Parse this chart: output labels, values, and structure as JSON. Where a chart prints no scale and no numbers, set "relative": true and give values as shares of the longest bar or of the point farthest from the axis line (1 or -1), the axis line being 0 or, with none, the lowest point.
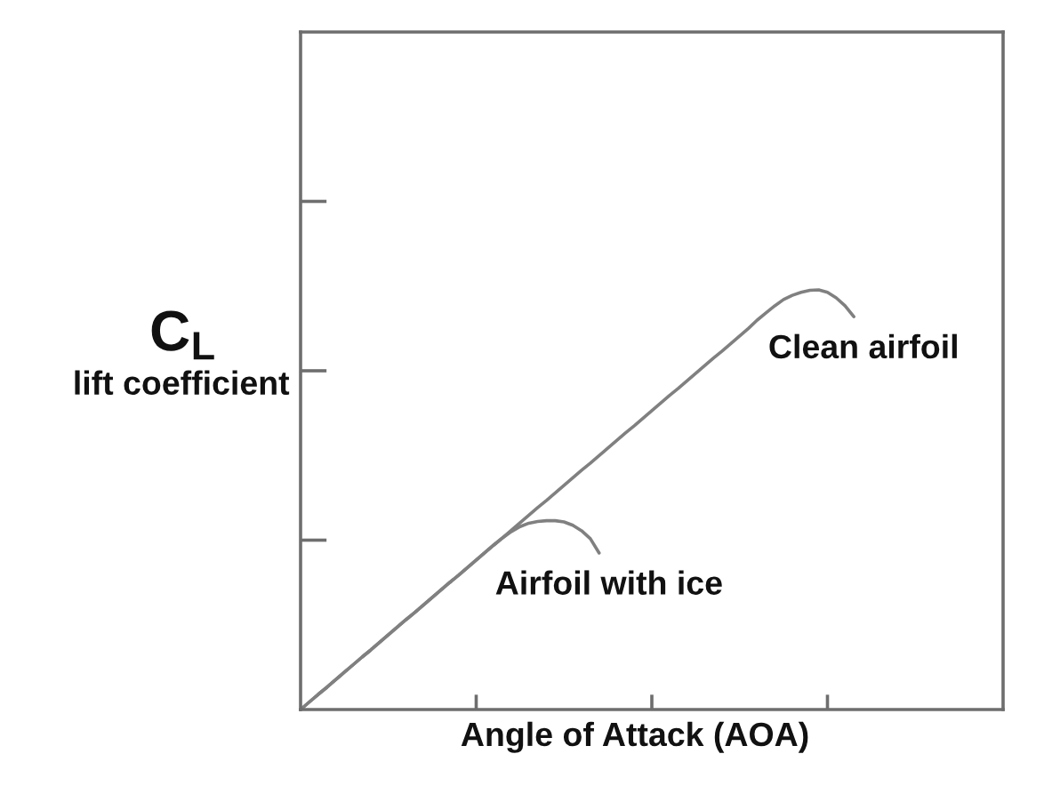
{
  "chart_data": {
    "type": "line",
    "relative": true,
    "xlabel": "Angle of Attack (AOA)",
    "ylabel": "C$_{L}$\nlift coefficient",
    "categories": [
      null,
      null,
      null,
      null,
      null,
      null,
      null,
      null,
      null,
      null,
      null,
      null,
      null,
      null,
      null,
      null,
      null,
      null,
      null,
      null,
      null,
      null,
      null,
      null,
      null,
      null,
      null,
      null,
      null,
      null,
      null,
      null,
      null,
      null,
      null,
      null,
      null,
      null,
      null,
      null,
      null,
      null,
      null,
      null,
      null,
      null,
      null,
      null,
      null,
      null,
      null,
      null,
      null,
      null,
      null,
      null,
      null,
      null,
      null,
      null,
      null,
      null,
      null,
      null,
      null,
      null,
      null,
      null,
      null,
      null,
      null,
      null,
      null,
      null,
      null,
      null,
      null,
      null,
      null,
      null,
      null
    ],
    "series": [
      {
        "name": "Clean airfoil",
        "color": "#808080",
        "values": [
          0,
          0.018,
          0.036,
          0.053,
          0.071,
          0.089,
          0.107,
          0.125,
          0.142,
          0.16,
          0.178,
          0.196,
          0.214,
          0.231,
          0.249,
          0.267,
          0.285,
          0.303,
          0.32,
          0.338,
          0.356,
          0.374,
          0.392,
          0.409,
          0.427,
          0.445,
          0.463,
          0.481,
          0.498,
          0.516,
          0.534,
          0.552,
          0.57,
          0.587,
          0.605,
          0.623,
          0.641,
          0.659,
          0.676,
          0.694,
          0.712,
          0.73,
          0.748,
          0.765,
          0.783,
          0.801,
          0.819,
          0.837,
          0.854,
          0.872,
          0.89,
          0.908,
          0.928,
          0.945,
          0.962,
          0.977,
          0.987,
          0.994,
          0.999,
          1.0,
          0.994,
          0.981,
          0.962,
          0.936,
          null,
          null,
          null,
          null,
          null,
          null,
          null,
          null,
          null,
          null,
          null,
          null,
          null,
          null,
          null,
          null,
          null
        ]
      },
      {
        "name": "Airfoil with ice",
        "color": "#808080",
        "values": [
          0,
          0.018,
          0.036,
          0.053,
          0.071,
          0.089,
          0.107,
          0.125,
          0.142,
          0.16,
          0.178,
          0.196,
          0.214,
          0.231,
          0.249,
          0.267,
          0.285,
          0.303,
          0.32,
          0.338,
          0.356,
          0.374,
          0.392,
          0.409,
          0.424,
          0.436,
          0.444,
          0.448,
          0.45,
          0.45,
          0.447,
          0.439,
          0.426,
          0.407,
          0.373,
          null,
          null,
          null,
          null,
          null,
          null,
          null,
          null,
          null,
          null,
          null,
          null,
          null,
          null,
          null,
          null,
          null,
          null,
          null,
          null,
          null,
          null,
          null,
          null,
          null,
          null,
          null,
          null,
          null,
          null,
          null,
          null,
          null,
          null,
          null,
          null,
          null,
          null,
          null,
          null,
          null,
          null,
          null,
          null,
          null,
          null
        ]
      }
    ]
  }
}
